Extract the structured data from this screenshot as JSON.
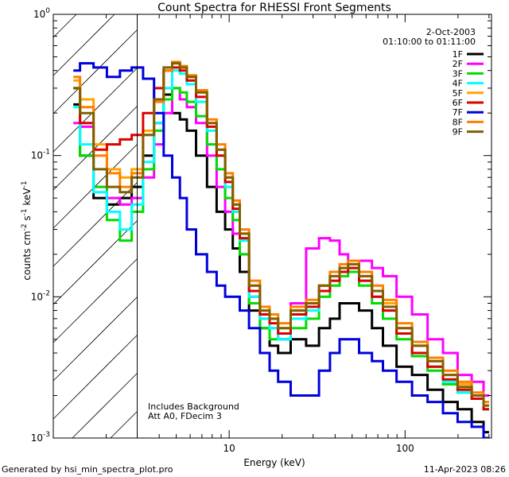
{
  "chart_data": {
    "type": "line",
    "title": "Count Spectra for RHESSI Front Segments",
    "xlabel": "Energy (keV)",
    "ylabel_parts": {
      "base": "counts cm",
      "exp1": "-2",
      "mid": " s",
      "exp2": "-1",
      "mid2": " keV",
      "exp3": "-1"
    },
    "x_scale": "log",
    "y_scale": "log",
    "xlim": [
      1,
      310
    ],
    "ylim": [
      0.001,
      1.0
    ],
    "x_ticks": [
      {
        "value": 10,
        "label": "10"
      },
      {
        "value": 100,
        "label": "100"
      }
    ],
    "y_ticks": [
      {
        "value": 0.001,
        "base": "10",
        "exp": "-3"
      },
      {
        "value": 0.01,
        "base": "10",
        "exp": "-2"
      },
      {
        "value": 0.1,
        "base": "10",
        "exp": "-1"
      },
      {
        "value": 1.0,
        "base": "10",
        "exp": "0"
      }
    ],
    "excluded_region": {
      "from": 1,
      "to": 3,
      "style": "hatched"
    },
    "date_line": "2-Oct-2003",
    "time_line": "01:10:00 to 01:11:00",
    "notes": [
      "Includes Background",
      "Att A0, FDecim 3"
    ],
    "footer_left": "Generated by hsi_min_spectra_plot.pro",
    "footer_right": "11-Apr-2023 08:26",
    "x": [
      1.3,
      1.55,
      1.85,
      2.2,
      2.6,
      3.0,
      3.5,
      4.0,
      4.5,
      5.0,
      5.5,
      6.0,
      7.0,
      8.0,
      9.0,
      10.0,
      11.0,
      12.0,
      14.0,
      16.0,
      18.0,
      20.0,
      25.0,
      30.0,
      35.0,
      40.0,
      45.0,
      50.0,
      60.0,
      70.0,
      80.0,
      100.0,
      120.0,
      150.0,
      180.0,
      220.0,
      260.0,
      300.0
    ],
    "series": [
      {
        "name": "1F",
        "color": "#000000",
        "values": [
          0.23,
          0.1,
          0.05,
          0.045,
          0.05,
          0.06,
          0.1,
          0.17,
          0.27,
          0.2,
          0.18,
          0.15,
          0.1,
          0.06,
          0.04,
          0.03,
          0.022,
          0.015,
          0.008,
          0.006,
          0.0045,
          0.004,
          0.005,
          0.0045,
          0.006,
          0.007,
          0.009,
          0.009,
          0.008,
          0.006,
          0.0045,
          0.0032,
          0.0028,
          0.0022,
          0.0018,
          0.0016,
          0.0013,
          0.0011
        ]
      },
      {
        "name": "2F",
        "color": "#ff00ff",
        "values": [
          0.17,
          0.16,
          0.06,
          0.05,
          0.045,
          0.05,
          0.07,
          0.12,
          0.2,
          0.3,
          0.25,
          0.22,
          0.17,
          0.1,
          0.06,
          0.04,
          0.028,
          0.02,
          0.01,
          0.007,
          0.006,
          0.005,
          0.009,
          0.022,
          0.026,
          0.025,
          0.02,
          0.018,
          0.018,
          0.016,
          0.014,
          0.01,
          0.0075,
          0.005,
          0.004,
          0.0028,
          0.0025,
          0.002
        ]
      },
      {
        "name": "3F",
        "color": "#00dd00",
        "values": [
          0.3,
          0.1,
          0.06,
          0.035,
          0.025,
          0.04,
          0.08,
          0.15,
          0.25,
          0.3,
          0.28,
          0.24,
          0.19,
          0.12,
          0.08,
          0.05,
          0.035,
          0.02,
          0.009,
          0.006,
          0.005,
          0.005,
          0.006,
          0.007,
          0.01,
          0.012,
          0.014,
          0.015,
          0.012,
          0.009,
          0.007,
          0.005,
          0.0038,
          0.003,
          0.0024,
          0.0021,
          0.0019,
          0.0016
        ]
      },
      {
        "name": "4F",
        "color": "#00ffff",
        "values": [
          0.22,
          0.12,
          0.055,
          0.04,
          0.03,
          0.045,
          0.09,
          0.17,
          0.3,
          0.4,
          0.38,
          0.32,
          0.24,
          0.15,
          0.1,
          0.06,
          0.04,
          0.025,
          0.01,
          0.007,
          0.006,
          0.005,
          0.007,
          0.008,
          0.011,
          0.013,
          0.015,
          0.016,
          0.013,
          0.01,
          0.008,
          0.0055,
          0.004,
          0.0032,
          0.0025,
          0.0021,
          0.0019,
          0.0016
        ]
      },
      {
        "name": "5F",
        "color": "#ffa500",
        "values": [
          0.34,
          0.25,
          0.12,
          0.08,
          0.07,
          0.08,
          0.15,
          0.25,
          0.4,
          0.45,
          0.42,
          0.36,
          0.28,
          0.17,
          0.11,
          0.07,
          0.045,
          0.028,
          0.012,
          0.008,
          0.007,
          0.006,
          0.008,
          0.009,
          0.012,
          0.014,
          0.016,
          0.017,
          0.014,
          0.011,
          0.009,
          0.006,
          0.0045,
          0.0035,
          0.0028,
          0.0024,
          0.002,
          0.0017
        ]
      },
      {
        "name": "6F",
        "color": "#dd0000",
        "values": [
          0.3,
          0.17,
          0.11,
          0.12,
          0.13,
          0.14,
          0.2,
          0.3,
          0.4,
          0.42,
          0.4,
          0.34,
          0.26,
          0.16,
          0.1,
          0.065,
          0.042,
          0.026,
          0.011,
          0.0075,
          0.0065,
          0.0055,
          0.0075,
          0.0085,
          0.011,
          0.013,
          0.015,
          0.016,
          0.013,
          0.01,
          0.008,
          0.0055,
          0.004,
          0.0032,
          0.0026,
          0.0022,
          0.0019,
          0.0016
        ]
      },
      {
        "name": "7F",
        "color": "#0000dd",
        "values": [
          0.4,
          0.45,
          0.42,
          0.36,
          0.4,
          0.42,
          0.35,
          0.2,
          0.1,
          0.07,
          0.05,
          0.03,
          0.02,
          0.015,
          0.012,
          0.01,
          0.01,
          0.008,
          0.006,
          0.004,
          0.003,
          0.0025,
          0.002,
          0.002,
          0.003,
          0.004,
          0.005,
          0.005,
          0.004,
          0.0035,
          0.003,
          0.0025,
          0.002,
          0.0018,
          0.0015,
          0.0013,
          0.0012,
          0.001
        ]
      },
      {
        "name": "8F",
        "color": "#ff7f00",
        "values": [
          0.36,
          0.22,
          0.1,
          0.075,
          0.06,
          0.075,
          0.14,
          0.24,
          0.4,
          0.46,
          0.43,
          0.37,
          0.29,
          0.18,
          0.12,
          0.075,
          0.048,
          0.03,
          0.013,
          0.0085,
          0.0075,
          0.0065,
          0.0085,
          0.0095,
          0.012,
          0.015,
          0.017,
          0.018,
          0.015,
          0.012,
          0.0095,
          0.0065,
          0.0048,
          0.0037,
          0.003,
          0.0025,
          0.0021,
          0.0018
        ]
      },
      {
        "name": "9F",
        "color": "#806000",
        "values": [
          0.3,
          0.2,
          0.08,
          0.06,
          0.055,
          0.07,
          0.14,
          0.25,
          0.42,
          0.45,
          0.42,
          0.36,
          0.28,
          0.17,
          0.11,
          0.07,
          0.045,
          0.028,
          0.012,
          0.008,
          0.007,
          0.006,
          0.008,
          0.009,
          0.012,
          0.014,
          0.016,
          0.017,
          0.014,
          0.011,
          0.0085,
          0.006,
          0.0045,
          0.0035,
          0.0028,
          0.0023,
          0.002,
          0.0017
        ]
      }
    ]
  }
}
